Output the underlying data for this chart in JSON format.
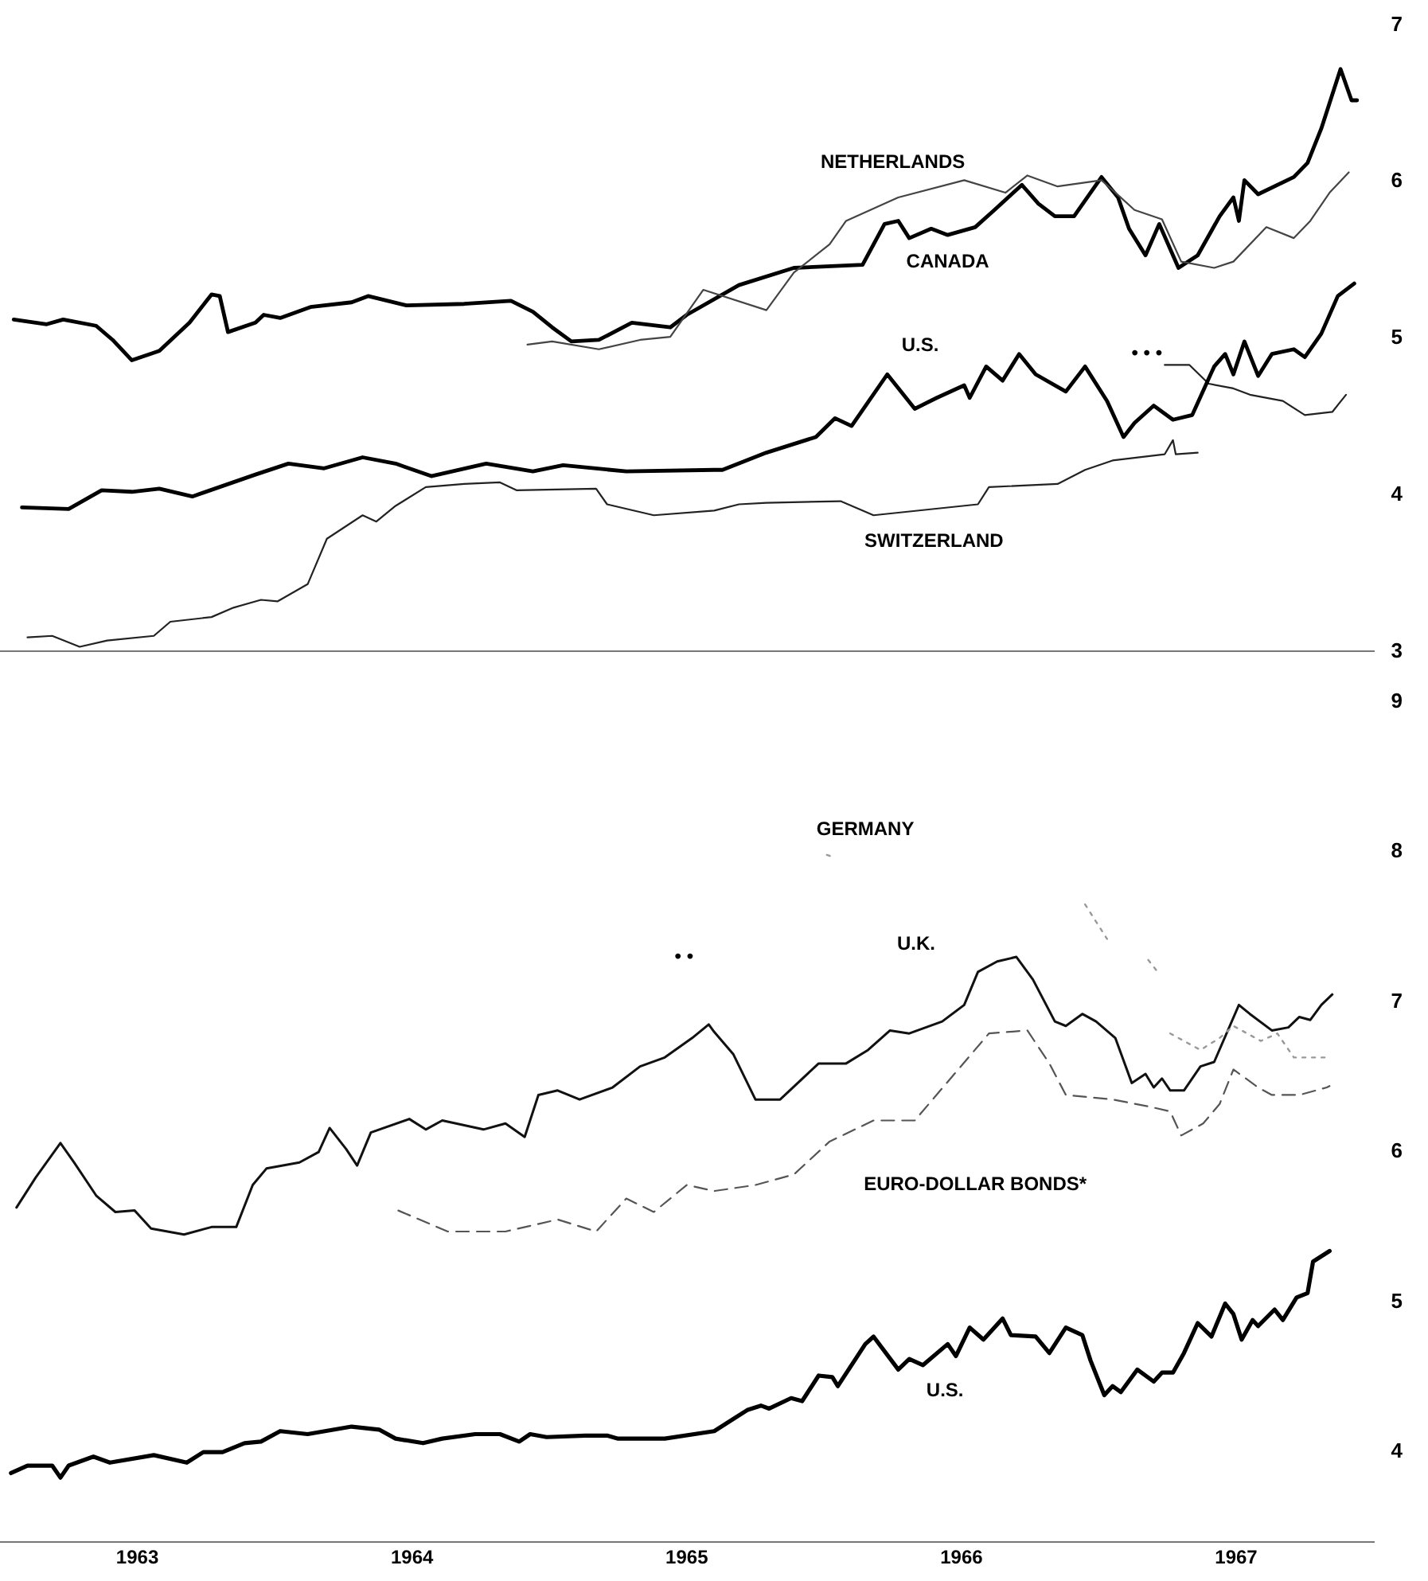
{
  "chart_data": [
    {
      "type": "line",
      "xlim": [
        1963,
        1968
      ],
      "ylim": [
        3,
        7
      ],
      "yticks": [
        3,
        4,
        5,
        6,
        7
      ],
      "tick_labels": "y",
      "grid": false,
      "legend": false,
      "marker": "none",
      "annotations": [
        "• • •"
      ],
      "series": [
        {
          "name": "NETHERLANDS",
          "color": "#444444",
          "line_style": "solid",
          "x": [
            1964.92,
            1965.01,
            1965.18,
            1965.33,
            1965.44,
            1965.56,
            1965.79,
            1965.89,
            1966.02,
            1966.08,
            1966.27,
            1966.51,
            1966.66,
            1966.74,
            1966.85,
            1967.01,
            1967.13,
            1967.23,
            1967.3,
            1967.42,
            1967.49,
            1967.61,
            1967.71,
            1967.77,
            1967.84,
            1967.91
          ],
          "values": [
            4.96,
            4.98,
            4.93,
            4.99,
            5.01,
            5.31,
            5.18,
            5.42,
            5.6,
            5.75,
            5.9,
            6.01,
            5.93,
            6.04,
            5.97,
            6.01,
            5.82,
            5.76,
            5.49,
            5.45,
            5.49,
            5.71,
            5.64,
            5.75,
            5.93,
            6.06
          ]
        },
        {
          "name": "CANADA",
          "color": "#000000",
          "line_style": "solid",
          "x": [
            1963.05,
            1963.17,
            1963.23,
            1963.35,
            1963.41,
            1963.48,
            1963.58,
            1963.69,
            1963.77,
            1963.8,
            1963.83,
            1963.93,
            1963.96,
            1964.02,
            1964.13,
            1964.28,
            1964.34,
            1964.48,
            1964.69,
            1964.86,
            1964.94,
            1965.01,
            1965.08,
            1965.18,
            1965.3,
            1965.44,
            1965.5,
            1965.69,
            1965.89,
            1966.14,
            1966.22,
            1966.27,
            1966.31,
            1966.39,
            1966.45,
            1966.55,
            1966.62,
            1966.72,
            1966.78,
            1966.84,
            1966.91,
            1967.01,
            1967.07,
            1967.11,
            1967.17,
            1967.22,
            1967.29,
            1967.36,
            1967.44,
            1967.49,
            1967.51,
            1967.53,
            1967.58,
            1967.71,
            1967.76,
            1967.81,
            1967.88,
            1967.92,
            1967.94
          ],
          "values": [
            5.12,
            5.09,
            5.12,
            5.08,
            4.99,
            4.86,
            4.92,
            5.1,
            5.28,
            5.27,
            5.04,
            5.1,
            5.15,
            5.13,
            5.2,
            5.23,
            5.27,
            5.21,
            5.22,
            5.24,
            5.17,
            5.07,
            4.98,
            4.99,
            5.1,
            5.07,
            5.15,
            5.34,
            5.45,
            5.47,
            5.73,
            5.75,
            5.64,
            5.7,
            5.66,
            5.71,
            5.82,
            5.98,
            5.86,
            5.78,
            5.78,
            6.03,
            5.9,
            5.7,
            5.53,
            5.73,
            5.45,
            5.53,
            5.78,
            5.9,
            5.75,
            6.01,
            5.92,
            6.03,
            6.12,
            6.34,
            6.72,
            6.52,
            6.52
          ]
        },
        {
          "name": "U.S.",
          "color": "#000000",
          "line_style": "solid",
          "x": [
            1963.08,
            1963.25,
            1963.37,
            1963.48,
            1963.58,
            1963.7,
            1963.93,
            1964.05,
            1964.18,
            1964.32,
            1964.44,
            1964.57,
            1964.77,
            1964.94,
            1965.05,
            1965.28,
            1965.6,
            1965.63,
            1965.79,
            1965.97,
            1966.04,
            1966.1,
            1966.23,
            1966.33,
            1966.41,
            1966.51,
            1966.53,
            1966.59,
            1966.65,
            1966.71,
            1966.77,
            1966.88,
            1966.95,
            1967.03,
            1967.09,
            1967.13,
            1967.2,
            1967.27,
            1967.34,
            1967.42,
            1967.46,
            1967.49,
            1967.53,
            1967.58,
            1967.63,
            1967.71,
            1967.75,
            1967.81,
            1967.87,
            1967.93
          ],
          "values": [
            3.92,
            3.91,
            4.03,
            4.02,
            4.04,
            3.99,
            4.13,
            4.2,
            4.17,
            4.24,
            4.2,
            4.12,
            4.2,
            4.15,
            4.19,
            4.15,
            4.16,
            4.16,
            4.27,
            4.37,
            4.49,
            4.44,
            4.77,
            4.55,
            4.62,
            4.7,
            4.62,
            4.82,
            4.73,
            4.9,
            4.77,
            4.66,
            4.82,
            4.6,
            4.37,
            4.46,
            4.57,
            4.48,
            4.51,
            4.82,
            4.9,
            4.77,
            4.98,
            4.76,
            4.9,
            4.93,
            4.88,
            5.03,
            5.27,
            5.35
          ]
        },
        {
          "name": "SWITZERLAND",
          "color": "#222222",
          "line_style": "solid",
          "x": [
            1963.1,
            1963.19,
            1963.29,
            1963.39,
            1963.56,
            1963.62,
            1963.77,
            1963.85,
            1963.95,
            1964.01,
            1964.12,
            1964.19,
            1964.32,
            1964.37,
            1964.44,
            1964.55,
            1964.69,
            1964.82,
            1964.88,
            1965.17,
            1965.21,
            1965.38,
            1965.6,
            1965.69,
            1965.79,
            1966.06,
            1966.18,
            1966.56,
            1966.6,
            1966.85,
            1966.95,
            1967.05,
            1967.24,
            1967.27,
            1967.28,
            1967.36
          ],
          "values": [
            3.09,
            3.1,
            3.03,
            3.07,
            3.1,
            3.19,
            3.22,
            3.28,
            3.33,
            3.32,
            3.43,
            3.72,
            3.87,
            3.83,
            3.93,
            4.05,
            4.07,
            4.08,
            4.03,
            4.04,
            3.94,
            3.87,
            3.9,
            3.94,
            3.95,
            3.96,
            3.87,
            3.94,
            4.05,
            4.07,
            4.16,
            4.22,
            4.26,
            4.35,
            4.26,
            4.27
          ]
        },
        {
          "color": "#222222",
          "line_style": "solid",
          "x": [
            1967.24,
            1967.33,
            1967.4,
            1967.49,
            1967.55,
            1967.67,
            1967.75,
            1967.85,
            1967.9
          ],
          "values": [
            4.83,
            4.83,
            4.71,
            4.68,
            4.64,
            4.6,
            4.51,
            4.53,
            4.64
          ]
        }
      ]
    },
    {
      "type": "line",
      "xlim": [
        1963,
        1968
      ],
      "xticks": [
        {
          "value": 1963.5,
          "label": "1963"
        },
        {
          "value": 1964.5,
          "label": "1964"
        },
        {
          "value": 1965.5,
          "label": "1965"
        },
        {
          "value": 1966.5,
          "label": "1966"
        },
        {
          "value": 1967.5,
          "label": "1967"
        }
      ],
      "ylim": [
        3.4,
        9
      ],
      "yticks": [
        4,
        5,
        6,
        7,
        8,
        9
      ],
      "grid": false,
      "legend": false,
      "marker": "none",
      "annotations": [
        "• •"
      ],
      "series": [
        {
          "name": "GERMANY",
          "color": "#999999",
          "line_style": "dotted",
          "x": [
            1966.01,
            1966.04,
            1966.5,
            1966.95,
            1967.03,
            1967.11,
            1967.18,
            1967.21,
            1967.23,
            1967.26,
            1967.37,
            1967.44,
            1967.49,
            1967.59,
            1967.65,
            1967.71,
            1967.84
          ],
          "values": [
            7.98,
            7.96,
            null,
            7.65,
            7.42,
            null,
            7.28,
            7.21,
            null,
            6.79,
            6.68,
            6.76,
            6.84,
            6.74,
            6.79,
            6.63,
            6.63
          ]
        },
        {
          "name": "U.K.",
          "color": "#111111",
          "line_style": "solid",
          "x": [
            1963.06,
            1963.13,
            1963.22,
            1963.27,
            1963.35,
            1963.42,
            1963.49,
            1963.55,
            1963.67,
            1963.77,
            1963.86,
            1963.92,
            1963.97,
            1964.09,
            1964.16,
            1964.2,
            1964.26,
            1964.3,
            1964.35,
            1964.49,
            1964.55,
            1964.61,
            1964.76,
            1964.84,
            1964.91,
            1964.96,
            1965.03,
            1965.11,
            1965.23,
            1965.33,
            1965.42,
            1965.52,
            1965.58,
            1965.6,
            1965.67,
            1965.75,
            1965.84,
            1965.98,
            1966.08,
            1966.16,
            1966.24,
            1966.31,
            1966.43,
            1966.51,
            1966.56,
            1966.63,
            1966.7,
            1966.76,
            1966.84,
            1966.88,
            1966.94,
            1966.99,
            1967.06,
            1967.12,
            1967.17,
            1967.2,
            1967.23,
            1967.26,
            1967.31,
            1967.37,
            1967.42,
            1967.51,
            1967.55,
            1967.63,
            1967.69,
            1967.73,
            1967.77,
            1967.81,
            1967.85
          ],
          "values": [
            5.63,
            5.83,
            6.06,
            5.93,
            5.71,
            5.6,
            5.61,
            5.49,
            5.45,
            5.5,
            5.5,
            5.78,
            5.89,
            5.93,
            6,
            6.16,
            6.02,
            5.91,
            6.13,
            6.22,
            6.15,
            6.21,
            6.15,
            6.19,
            6.1,
            6.38,
            6.41,
            6.35,
            6.43,
            6.57,
            6.63,
            6.76,
            6.85,
            6.8,
            6.65,
            6.35,
            6.35,
            6.59,
            6.59,
            6.68,
            6.81,
            6.79,
            6.87,
            6.98,
            7.2,
            7.27,
            7.3,
            7.15,
            6.87,
            6.84,
            6.92,
            6.87,
            6.76,
            6.46,
            6.52,
            6.43,
            6.49,
            6.41,
            6.41,
            6.57,
            6.6,
            6.98,
            6.92,
            6.81,
            6.83,
            6.9,
            6.88,
            6.98,
            7.05
          ]
        },
        {
          "name": "EURO-DOLLAR BONDS*",
          "color": "#555555",
          "line_style": "dashed",
          "x": [
            1964.45,
            1964.63,
            1964.84,
            1965.03,
            1965.17,
            1965.28,
            1965.38,
            1965.5,
            1965.6,
            1965.75,
            1965.89,
            1966.02,
            1966.18,
            1966.33,
            1966.6,
            1966.74,
            1966.82,
            1966.88,
            1967.05,
            1967.19,
            1967.26,
            1967.3,
            1967.38,
            1967.44,
            1967.49,
            1967.58,
            1967.63,
            1967.73,
            1967.83,
            1967.84
          ],
          "values": [
            5.61,
            5.47,
            5.47,
            5.55,
            5.47,
            5.69,
            5.6,
            5.78,
            5.74,
            5.78,
            5.85,
            6.07,
            6.21,
            6.21,
            6.79,
            6.81,
            6.59,
            6.38,
            6.35,
            6.3,
            6.27,
            6.11,
            6.19,
            6.32,
            6.55,
            6.43,
            6.38,
            6.38,
            6.43,
            6.44
          ]
        },
        {
          "name": "U.S.",
          "color": "#000000",
          "line_style": "solid",
          "x": [
            1963.04,
            1963.1,
            1963.19,
            1963.22,
            1963.25,
            1963.34,
            1963.4,
            1963.56,
            1963.68,
            1963.74,
            1963.81,
            1963.89,
            1963.95,
            1964.02,
            1964.12,
            1964.28,
            1964.38,
            1964.44,
            1964.54,
            1964.61,
            1964.73,
            1964.82,
            1964.89,
            1964.93,
            1964.99,
            1965.13,
            1965.21,
            1965.25,
            1965.42,
            1965.6,
            1965.72,
            1965.77,
            1965.8,
            1965.88,
            1965.92,
            1965.98,
            1966.03,
            1966.05,
            1966.15,
            1966.18,
            1966.27,
            1966.31,
            1966.36,
            1966.45,
            1966.48,
            1966.53,
            1966.58,
            1966.65,
            1966.68,
            1966.77,
            1966.82,
            1966.88,
            1966.94,
            1966.97,
            1967.02,
            1967.05,
            1967.08,
            1967.14,
            1967.2,
            1967.23,
            1967.27,
            1967.31,
            1967.36,
            1967.41,
            1967.46,
            1967.49,
            1967.52,
            1967.56,
            1967.58,
            1967.64,
            1967.67,
            1967.72,
            1967.76,
            1967.78,
            1967.84
          ],
          "values": [
            3.86,
            3.91,
            3.91,
            3.83,
            3.91,
            3.97,
            3.93,
            3.98,
            3.93,
            4,
            4,
            4.06,
            4.07,
            4.14,
            4.12,
            4.17,
            4.15,
            4.09,
            4.06,
            4.09,
            4.12,
            4.12,
            4.07,
            4.12,
            4.1,
            4.11,
            4.11,
            4.09,
            4.09,
            4.14,
            4.28,
            4.31,
            4.29,
            4.36,
            4.34,
            4.51,
            4.5,
            4.44,
            4.72,
            4.77,
            4.55,
            4.62,
            4.58,
            4.72,
            4.64,
            4.83,
            4.75,
            4.89,
            4.78,
            4.77,
            4.66,
            4.83,
            4.78,
            4.61,
            4.38,
            4.44,
            4.4,
            4.55,
            4.47,
            4.53,
            4.53,
            4.66,
            4.86,
            4.77,
            4.99,
            4.92,
            4.75,
            4.88,
            4.84,
            4.95,
            4.88,
            5.03,
            5.06,
            5.27,
            5.34
          ]
        }
      ]
    }
  ]
}
